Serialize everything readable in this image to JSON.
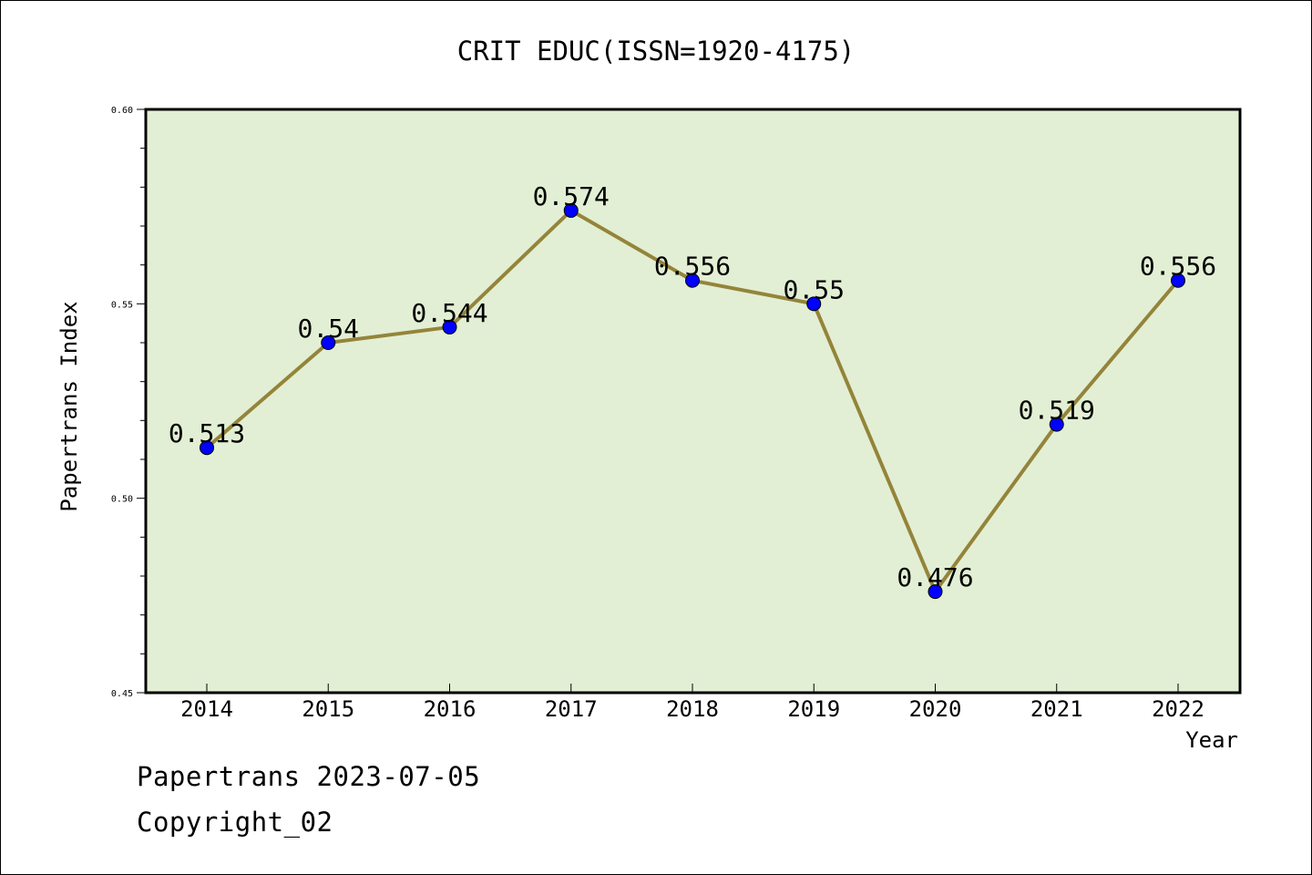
{
  "chart_data": {
    "type": "line",
    "title": "CRIT EDUC(ISSN=1920-4175)",
    "xlabel": "Year",
    "ylabel": "Papertrans Index",
    "categories": [
      "2014",
      "2015",
      "2016",
      "2017",
      "2018",
      "2019",
      "2020",
      "2021",
      "2022"
    ],
    "series": [
      {
        "values": [
          0.513,
          0.54,
          0.544,
          0.574,
          0.556,
          0.55,
          0.476,
          0.519,
          0.556
        ]
      }
    ],
    "data_labels": [
      "0.513",
      "0.54",
      "0.544",
      "0.574",
      "0.556",
      "0.55",
      "0.476",
      "0.519",
      "0.556"
    ],
    "ylim": [
      0.45,
      0.6
    ],
    "y_ticks": [
      "0.45",
      "0.50",
      "0.55",
      "0.60"
    ],
    "grid": false,
    "legend": "none",
    "colors": {
      "plot_background": "#e2efd4",
      "line": "#94843a",
      "marker": "#0000ff"
    }
  },
  "footer": {
    "line1": "Papertrans 2023-07-05",
    "line2": "Copyright_02"
  }
}
